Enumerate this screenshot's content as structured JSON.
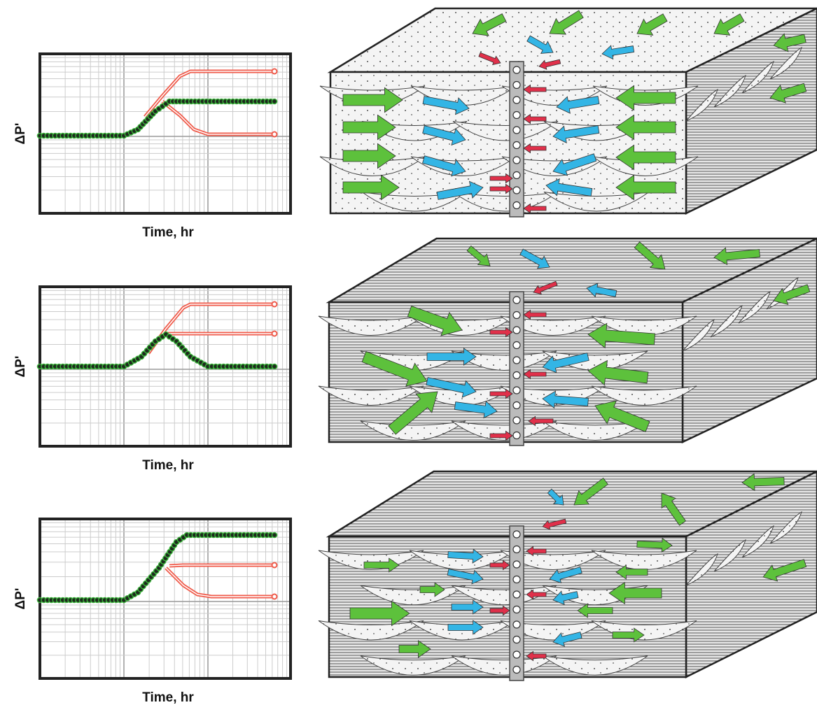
{
  "panels": [
    {
      "y_label": "ΔP'",
      "x_label": "Time, hr"
    },
    {
      "y_label": "ΔP'",
      "x_label": "Time, hr"
    },
    {
      "y_label": "ΔP'",
      "x_label": "Time, hr"
    }
  ]
}
